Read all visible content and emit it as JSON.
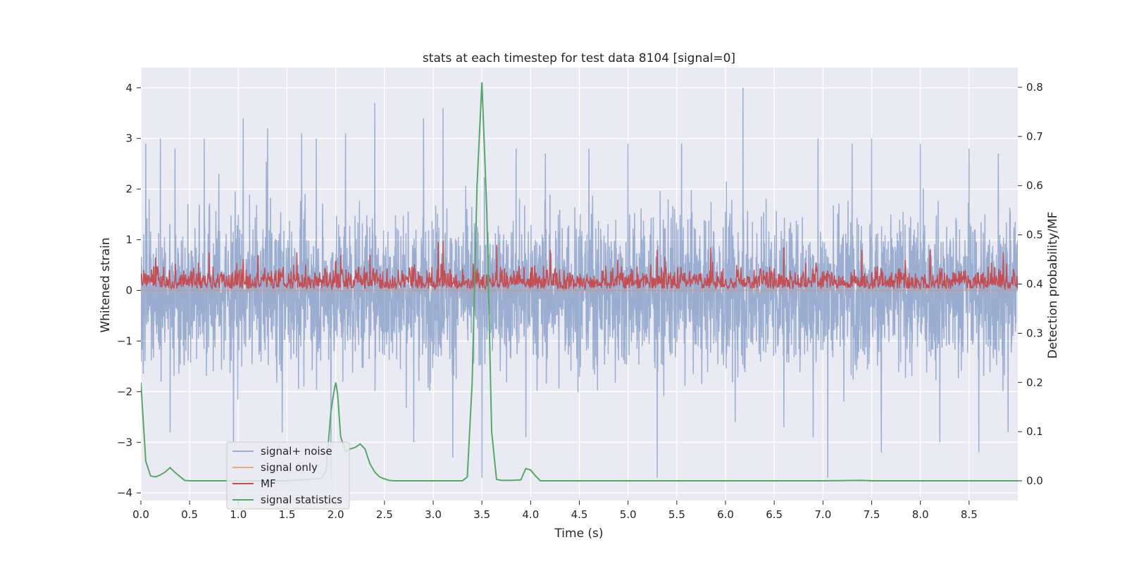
{
  "chart_data": {
    "type": "line",
    "title": "stats at each timestep for test data 8104 [signal=0]",
    "xlabel": "Time (s)",
    "ylabel_left": "Whitened strain",
    "ylabel_right": "Detection probability/MF",
    "xlim": [
      0,
      9
    ],
    "ylim_left": [
      -4.15,
      4.4
    ],
    "ylim_right": [
      -0.04,
      0.84
    ],
    "x_ticks": [
      "0.0",
      "0.5",
      "1.0",
      "1.5",
      "2.0",
      "2.5",
      "3.0",
      "3.5",
      "4.0",
      "4.5",
      "5.0",
      "5.5",
      "6.0",
      "6.5",
      "7.0",
      "7.5",
      "8.0",
      "8.5"
    ],
    "y_ticks_left": [
      "4",
      "3",
      "2",
      "1",
      "0",
      "−1",
      "−2",
      "−3",
      "−4"
    ],
    "y_ticks_right": [
      "0.8",
      "0.7",
      "0.6",
      "0.5",
      "0.4",
      "0.3",
      "0.2",
      "0.1",
      "0.0"
    ],
    "grid": true,
    "legend_position": "lower-left",
    "colors": {
      "background": "#eaeaf2",
      "grid": "#ffffff",
      "signal_noise": "#4c72b0",
      "signal_only": "#dd8452",
      "mf": "#c44e52",
      "signal_statistics": "#55a868"
    },
    "series": [
      {
        "name": "signal+ noise",
        "axis": "left",
        "note_on_values": "dense white-noise strain, amplitude envelope roughly -3.5 to 3.5 with peaks near 4.0 at t=6.18",
        "peaks_positive": [
          [
            0.05,
            2.9
          ],
          [
            0.2,
            3.0
          ],
          [
            0.35,
            2.8
          ],
          [
            0.65,
            3.0
          ],
          [
            0.8,
            2.3
          ],
          [
            1.05,
            3.4
          ],
          [
            1.3,
            3.2
          ],
          [
            1.65,
            3.1
          ],
          [
            1.8,
            3.0
          ],
          [
            2.1,
            3.1
          ],
          [
            2.4,
            3.7
          ],
          [
            2.9,
            3.4
          ],
          [
            3.1,
            3.6
          ],
          [
            3.2,
            3.3
          ],
          [
            3.5,
            3.0
          ],
          [
            3.85,
            2.8
          ],
          [
            4.15,
            2.7
          ],
          [
            4.6,
            2.8
          ],
          [
            5.0,
            2.9
          ],
          [
            5.3,
            3.0
          ],
          [
            5.55,
            2.9
          ],
          [
            6.18,
            4.0
          ],
          [
            6.6,
            3.2
          ],
          [
            6.95,
            3.0
          ],
          [
            7.3,
            2.9
          ],
          [
            7.5,
            3.0
          ],
          [
            8.0,
            2.9
          ],
          [
            8.5,
            2.8
          ],
          [
            8.8,
            2.7
          ]
        ],
        "peaks_negative": [
          [
            0.3,
            -2.8
          ],
          [
            0.95,
            -3.0
          ],
          [
            1.45,
            -2.8
          ],
          [
            1.95,
            -3.7
          ],
          [
            2.8,
            -3.0
          ],
          [
            3.2,
            -3.3
          ],
          [
            3.5,
            -3.7
          ],
          [
            3.95,
            -2.9
          ],
          [
            5.3,
            -3.7
          ],
          [
            6.1,
            -2.6
          ],
          [
            6.6,
            -2.7
          ],
          [
            6.9,
            -2.9
          ],
          [
            7.05,
            -3.7
          ],
          [
            7.6,
            -3.2
          ],
          [
            8.2,
            -3.0
          ],
          [
            8.6,
            -3.2
          ],
          [
            8.9,
            -2.8
          ]
        ]
      },
      {
        "name": "signal only",
        "axis": "left",
        "x": [
          0,
          9
        ],
        "y": [
          0,
          0
        ]
      },
      {
        "name": "MF",
        "axis": "left",
        "note_on_values": "matched-filter output, values mostly between 0.0 and 0.9, peak near 1.0 at t=3.1",
        "peaks": [
          [
            0.15,
            0.65
          ],
          [
            0.7,
            0.75
          ],
          [
            1.2,
            0.7
          ],
          [
            1.6,
            0.75
          ],
          [
            2.05,
            0.7
          ],
          [
            2.35,
            0.7
          ],
          [
            3.05,
            0.95
          ],
          [
            3.1,
            0.98
          ],
          [
            3.65,
            0.9
          ],
          [
            4.2,
            0.8
          ],
          [
            5.3,
            0.8
          ],
          [
            5.85,
            0.85
          ],
          [
            6.6,
            0.85
          ],
          [
            7.4,
            0.8
          ],
          [
            8.1,
            0.8
          ],
          [
            8.85,
            0.75
          ]
        ]
      },
      {
        "name": "signal statistics",
        "axis": "right",
        "x": [
          0.0,
          0.05,
          0.1,
          0.15,
          0.2,
          0.25,
          0.3,
          0.35,
          0.45,
          0.5,
          1.0,
          1.5,
          1.85,
          1.9,
          1.95,
          1.98,
          2.0,
          2.02,
          2.05,
          2.1,
          2.15,
          2.2,
          2.25,
          2.3,
          2.35,
          2.4,
          2.45,
          2.5,
          2.55,
          2.6,
          2.7,
          3.0,
          3.3,
          3.35,
          3.4,
          3.45,
          3.5,
          3.55,
          3.6,
          3.65,
          3.7,
          3.8,
          3.9,
          3.95,
          4.0,
          4.05,
          4.1,
          4.2,
          5.0,
          6.0,
          7.0,
          7.4,
          7.5,
          8.0,
          9.0
        ],
        "y": [
          0.2,
          0.04,
          0.01,
          0.008,
          0.012,
          0.018,
          0.027,
          0.017,
          0.001,
          0.0,
          0.0,
          0.0,
          0.005,
          0.02,
          0.14,
          0.18,
          0.2,
          0.175,
          0.09,
          0.06,
          0.065,
          0.068,
          0.075,
          0.065,
          0.035,
          0.018,
          0.008,
          0.004,
          0.001,
          0.0,
          0.0,
          0.0,
          0.0,
          0.008,
          0.2,
          0.6,
          0.81,
          0.55,
          0.1,
          0.003,
          0.001,
          0.001,
          0.002,
          0.025,
          0.022,
          0.01,
          0.0,
          0.0,
          0.0,
          0.0,
          0.0,
          0.001,
          0.0,
          0.0,
          0.0
        ]
      }
    ]
  }
}
